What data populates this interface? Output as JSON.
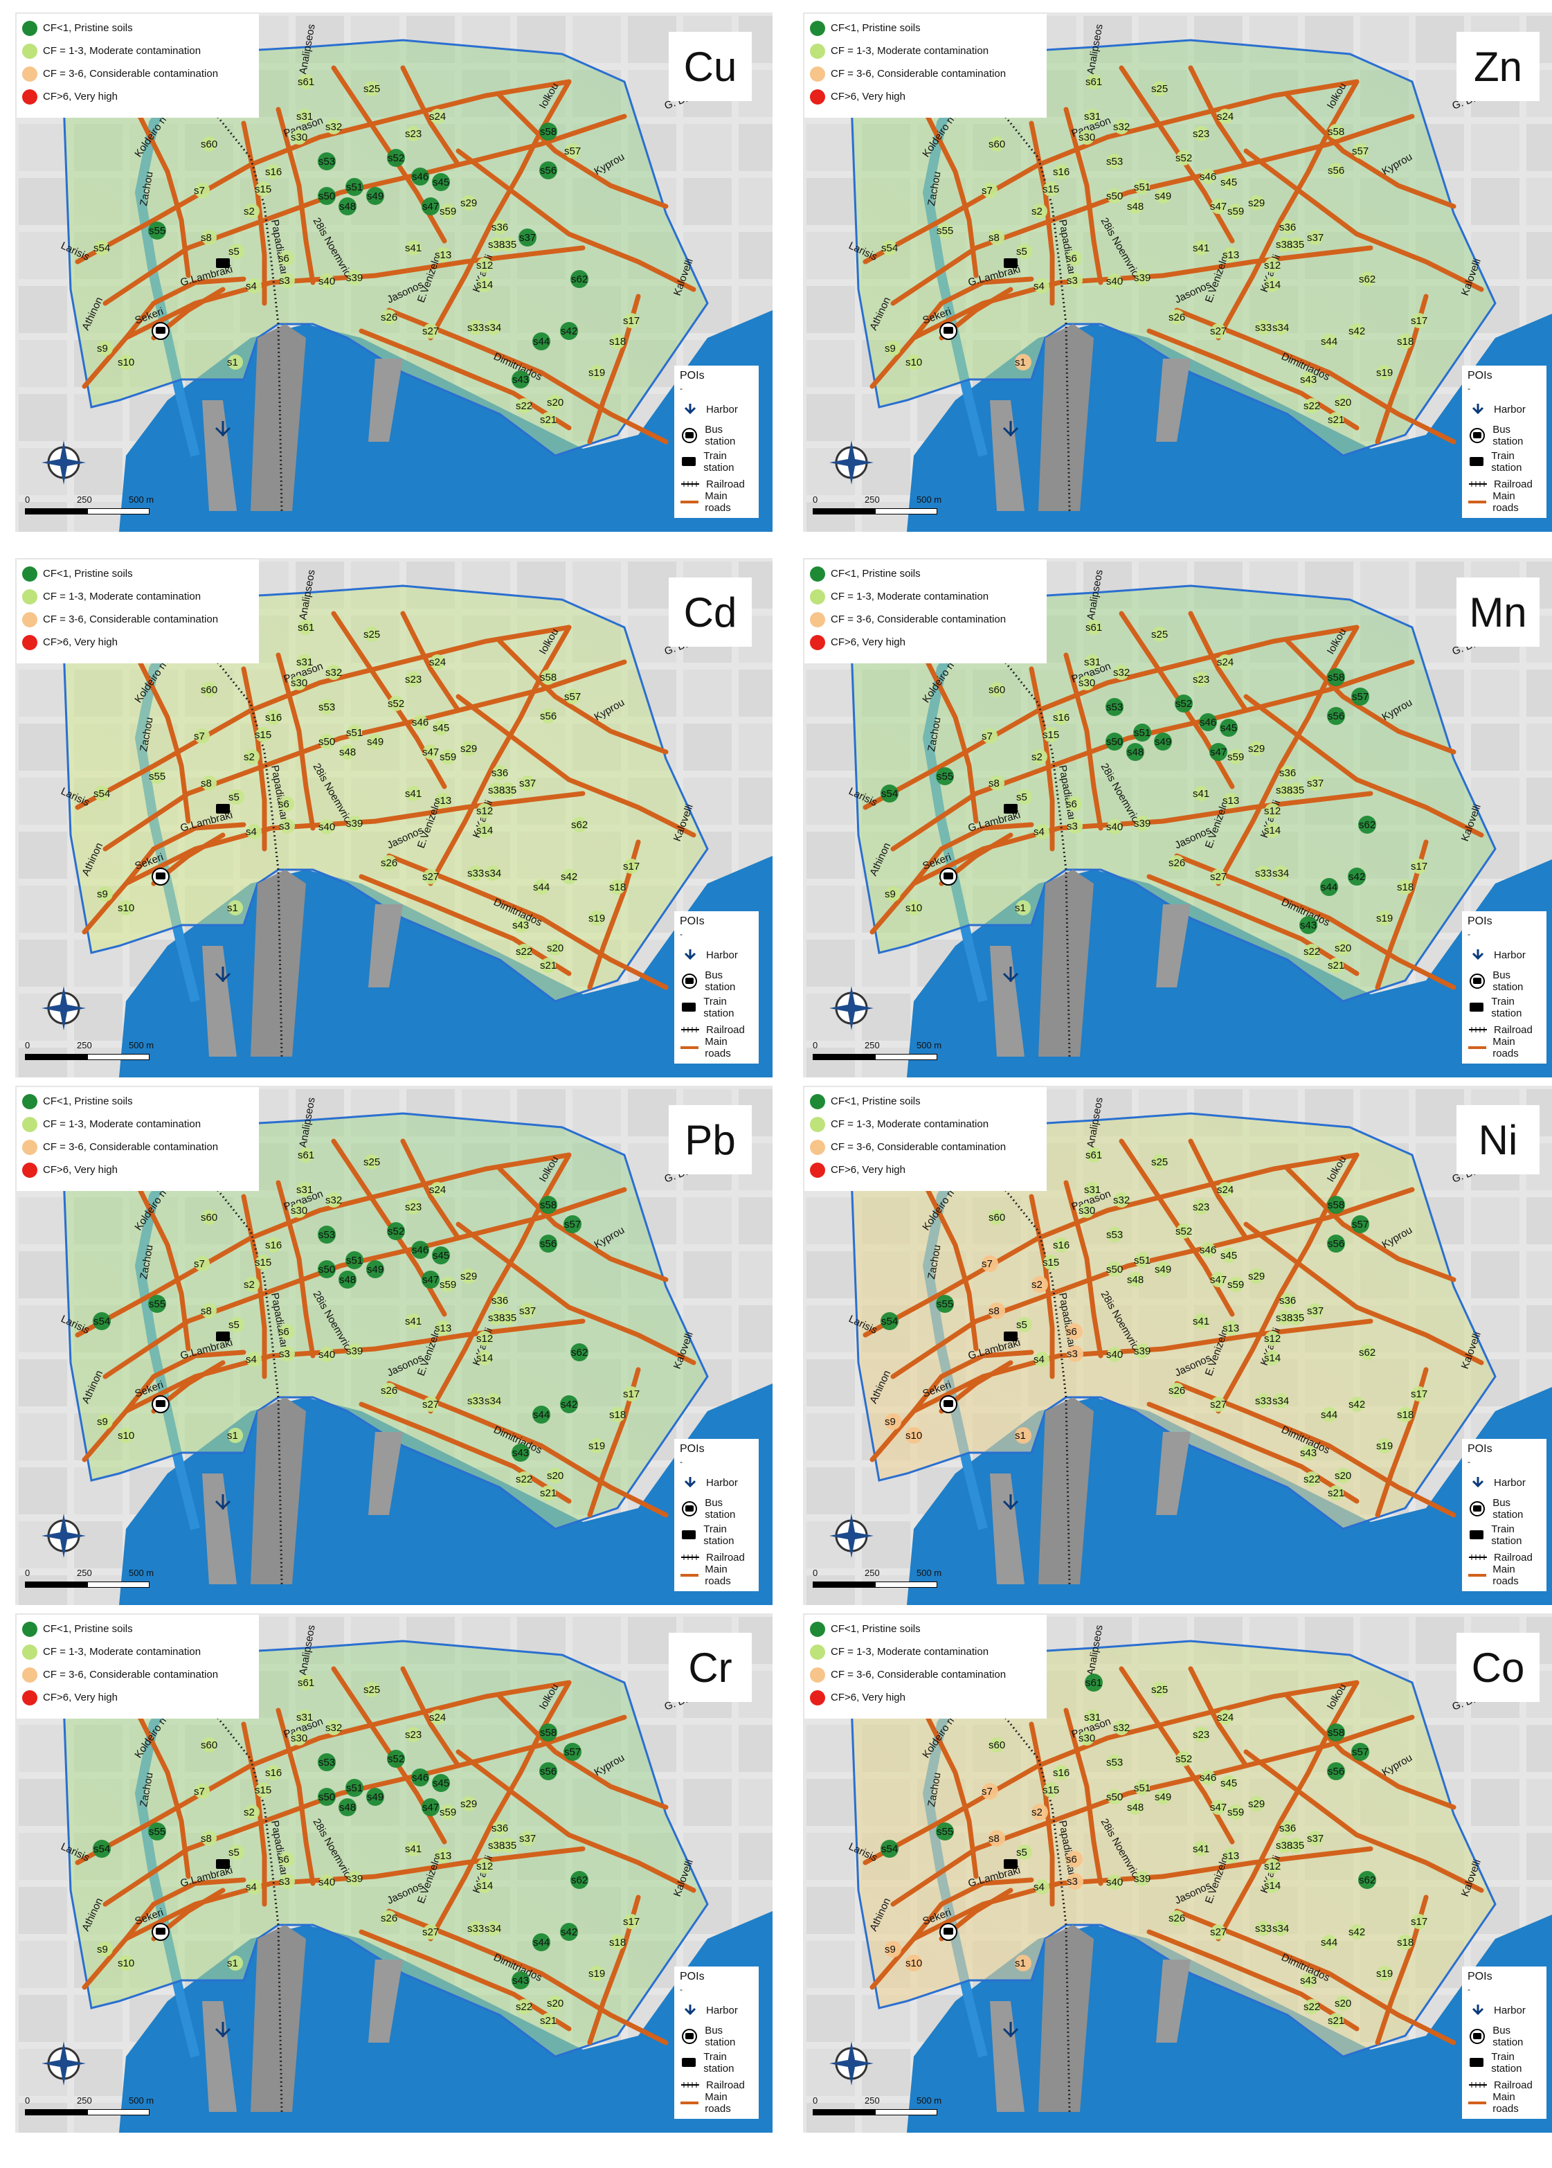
{
  "legend": {
    "items": [
      {
        "label": "CF<1, Pristine soils",
        "color": "#1e8a35"
      },
      {
        "label": "CF = 1-3, Moderate contamination",
        "color": "#bde37a"
      },
      {
        "label": "CF = 3-6, Considerable contamination",
        "color": "#f7c48a"
      },
      {
        "label": "CF>6, Very high",
        "color": "#e8201a"
      }
    ]
  },
  "pois": {
    "title": "POIs",
    "dash": "-",
    "harbor": "Harbor",
    "bus": "Bus station",
    "train": "Train station",
    "railroad": "Railroad",
    "roads": "Main roads"
  },
  "scale": {
    "zero": "0",
    "mid": "250",
    "end": "500 m"
  },
  "streets": [
    "Pagason",
    "Analipseos",
    "Iolkou",
    "Kyprou",
    "G. Dimou",
    "Koldeiro river",
    "Zachou",
    "Larisis",
    "Athinon",
    "Sekeri",
    "G.Lambraki",
    "Jasonos",
    "Dimitriados",
    "K.Kartali",
    "E.Venizelou",
    "Polimeri",
    "Kalovelli",
    "28is Noemvriou",
    "Papadiamanti"
  ],
  "panels": [
    {
      "element": "Cu",
      "overlay": "green",
      "dark": [
        "s55",
        "s53",
        "s51",
        "s52",
        "s50",
        "s48",
        "s49",
        "s46",
        "s45",
        "s47",
        "s58",
        "s56",
        "s37",
        "s62",
        "s42",
        "s44",
        "s43"
      ],
      "orange": []
    },
    {
      "element": "Zn",
      "overlay": "green",
      "dark": [],
      "orange": [
        "s1"
      ]
    },
    {
      "element": "Cd",
      "overlay": "yellow",
      "dark": [],
      "orange": []
    },
    {
      "element": "Mn",
      "overlay": "green",
      "dark": [
        "s54",
        "s55",
        "s53",
        "s51",
        "s50",
        "s48",
        "s49",
        "s46",
        "s45",
        "s47",
        "s58",
        "s56",
        "s57",
        "s62",
        "s42",
        "s44",
        "s43",
        "s52"
      ],
      "orange": []
    },
    {
      "element": "Pb",
      "overlay": "green",
      "dark": [
        "s55",
        "s53",
        "s52",
        "s51",
        "s50",
        "s48",
        "s49",
        "s46",
        "s45",
        "s47",
        "s58",
        "s57",
        "s56",
        "s62",
        "s42",
        "s44",
        "s43",
        "s54"
      ],
      "orange": []
    },
    {
      "element": "Ni",
      "overlay": "orange",
      "dark": [
        "s55",
        "s54",
        "s58",
        "s57",
        "s56"
      ],
      "orange": [
        "s7",
        "s8",
        "s9",
        "s10",
        "s1",
        "s2",
        "s3",
        "s6"
      ]
    },
    {
      "element": "Cr",
      "overlay": "green",
      "dark": [
        "s55",
        "s54",
        "s53",
        "s52",
        "s51",
        "s50",
        "s48",
        "s49",
        "s46",
        "s45",
        "s47",
        "s58",
        "s57",
        "s56",
        "s62",
        "s42",
        "s44",
        "s43"
      ],
      "orange": []
    },
    {
      "element": "Co",
      "overlay": "orange",
      "dark": [
        "s61",
        "s54",
        "s55",
        "s58",
        "s56",
        "s57",
        "s62"
      ],
      "orange": [
        "s7",
        "s8",
        "s2",
        "s6",
        "s3",
        "s1",
        "s10",
        "s9"
      ]
    }
  ]
}
